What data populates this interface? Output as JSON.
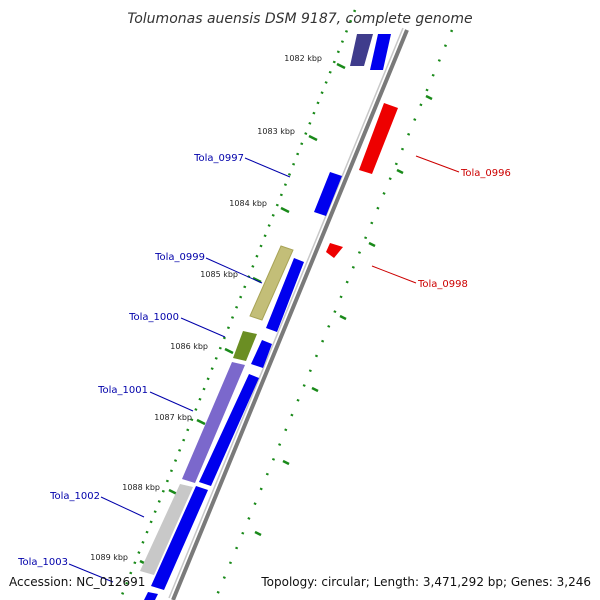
{
  "title": "Tolumonas auensis DSM 9187, complete genome",
  "accession": "Accession: NC_012691",
  "topology": "Topology: circular; Length: 3,471,292 bp; Genes: 3,246",
  "colors": {
    "backbone": "#8c8c8c",
    "tick": "#1a8a1a",
    "forward_label": "#0000aa",
    "reverse_label": "#cc0000",
    "forward_gene": "#0000ee",
    "reverse_gene": "#ee0000"
  },
  "kbp_marks": [
    {
      "label": "1082 kbp"
    },
    {
      "label": "1083 kbp"
    },
    {
      "label": "1084 kbp"
    },
    {
      "label": "1085 kbp"
    },
    {
      "label": "1086 kbp"
    },
    {
      "label": "1087 kbp"
    },
    {
      "label": "1088 kbp"
    },
    {
      "label": "1089 kbp"
    }
  ],
  "gene_labels": [
    {
      "name": "Tola_0996",
      "strand": "reverse"
    },
    {
      "name": "Tola_0997",
      "strand": "forward"
    },
    {
      "name": "Tola_0998",
      "strand": "reverse"
    },
    {
      "name": "Tola_0999",
      "strand": "forward"
    },
    {
      "name": "Tola_1000",
      "strand": "forward"
    },
    {
      "name": "Tola_1001",
      "strand": "forward"
    },
    {
      "name": "Tola_1002",
      "strand": "forward"
    },
    {
      "name": "Tola_1003",
      "strand": "forward"
    }
  ]
}
